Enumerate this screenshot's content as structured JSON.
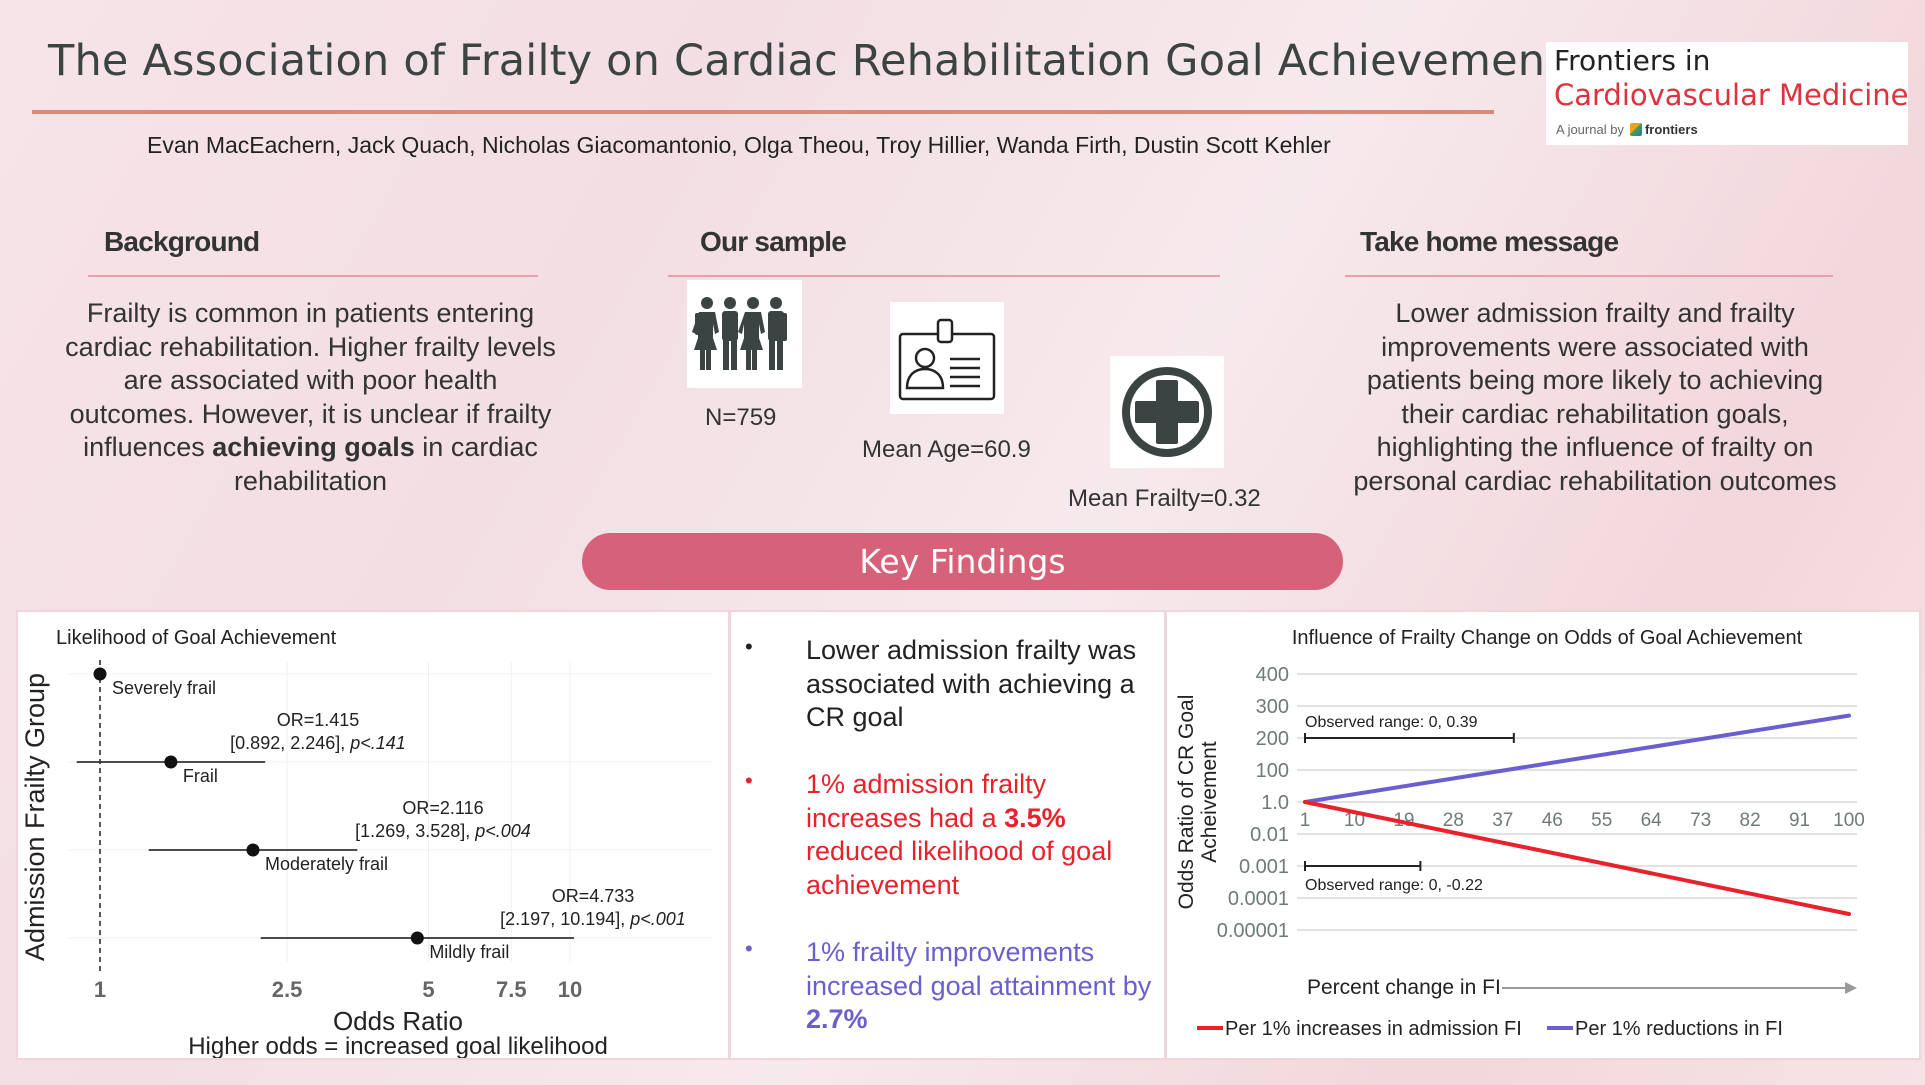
{
  "header": {
    "title": "The Association of Frailty on Cardiac Rehabilitation Goal Achievement",
    "authors": "Evan MacEachern, Jack Quach, Nicholas Giacomantonio, Olga Theou, Troy Hillier, Wanda Firth, Dustin Scott Kehler"
  },
  "logo": {
    "line1": "Frontiers in",
    "line2": "Cardiovascular Medicine",
    "byline": "A journal by",
    "brand": "frontiers"
  },
  "background": {
    "heading": "Background",
    "text_before": "Frailty is common in patients entering cardiac rehabilitation. Higher frailty levels are associated with poor health outcomes. However, it is unclear if frailty influences ",
    "text_bold": "achieving goals",
    "text_after": " in cardiac rehabilitation"
  },
  "sample": {
    "heading": "Our sample",
    "stats": [
      {
        "icon": "people-group-icon",
        "label": "N=759"
      },
      {
        "icon": "id-badge-icon",
        "label": "Mean Age=60.9"
      },
      {
        "icon": "medical-cross-icon",
        "label": "Mean Frailty=0.32"
      }
    ]
  },
  "take_home": {
    "heading": "Take home message",
    "text": "Lower admission frailty and frailty improvements were associated with patients being more likely to achieving their cardiac rehabilitation goals, highlighting the influence of frailty on personal cardiac rehabilitation outcomes"
  },
  "key_findings": {
    "label": "Key Findings",
    "bullets": [
      {
        "color": "#222222",
        "text": "Lower admission frailty was associated with achieving a CR goal",
        "bold": ""
      },
      {
        "color": "#e8212b",
        "text_before": "1% admission frailty increases had a ",
        "bold": "3.5%",
        "text_after": " reduced likelihood of goal achievement"
      },
      {
        "color": "#6a5fcf",
        "text_before": "1% frailty improvements increased goal attainment by ",
        "bold": "2.7%",
        "text_after": ""
      }
    ]
  },
  "colors": {
    "accent_pink": "#d6627a",
    "title_rule": "#d9897c",
    "red_series": "#e8212b",
    "purple_series": "#6a5fcf"
  },
  "chart_data": [
    {
      "type": "forest",
      "title": "Likelihood of Goal Achievement",
      "ylabel": "Admission Frailty Group",
      "xlabel": "Odds Ratio",
      "subtitle": "Higher odds = increased goal likelihood",
      "xscale": "log",
      "xlim": [
        0.8,
        11
      ],
      "xticks": [
        "1",
        "2.5",
        "5",
        "7.5",
        "10"
      ],
      "xtick_values": [
        1,
        2.5,
        5,
        7.5,
        10
      ],
      "reference_line": 1,
      "groups": [
        {
          "name": "Severely frail",
          "or": 1,
          "ci": null,
          "or_label": "",
          "ci_label": "",
          "p_label": ""
        },
        {
          "name": "Frail",
          "or": 1.415,
          "ci": [
            0.892,
            2.246
          ],
          "or_label": "OR=1.415",
          "ci_label": "[0.892, 2.246], ",
          "p_label": "p<.141"
        },
        {
          "name": "Moderately frail",
          "or": 2.116,
          "ci": [
            1.269,
            3.528
          ],
          "or_label": "OR=2.116",
          "ci_label": "[1.269, 3.528], ",
          "p_label": "p<.004"
        },
        {
          "name": "Mildly frail",
          "or": 4.733,
          "ci": [
            2.197,
            10.194
          ],
          "or_label": "OR=4.733",
          "ci_label": "[2.197, 10.194], ",
          "p_label": "p<.001"
        }
      ]
    },
    {
      "type": "line",
      "title": "Influence of Frailty Change on Odds of Goal Achievement",
      "ylabel_line1": "Odds Ratio of CR Goal",
      "ylabel_line2": "Acheivement",
      "xlabel": "Percent change in FI",
      "yticks": [
        "400",
        "300",
        "200",
        "100",
        "1.0",
        "0.01",
        "0.001",
        "0.0001",
        "0.00001"
      ],
      "xticks": [
        "1",
        "10",
        "19",
        "28",
        "37",
        "46",
        "55",
        "64",
        "73",
        "82",
        "91",
        "100"
      ],
      "x": [
        1,
        100
      ],
      "series": [
        {
          "name": "Per 1% increases in admission FI",
          "color": "#e8212b",
          "values": [
            1.0,
            3e-05
          ]
        },
        {
          "name": "Per 1% reductions in FI",
          "color": "#6a5fcf",
          "values": [
            1.0,
            270
          ]
        }
      ],
      "annotations": [
        {
          "text": "Observed range: 0, 0.39",
          "x_range": [
            1,
            39
          ]
        },
        {
          "text": "Observed range: 0, -0.22",
          "x_range": [
            1,
            22
          ]
        }
      ]
    }
  ]
}
